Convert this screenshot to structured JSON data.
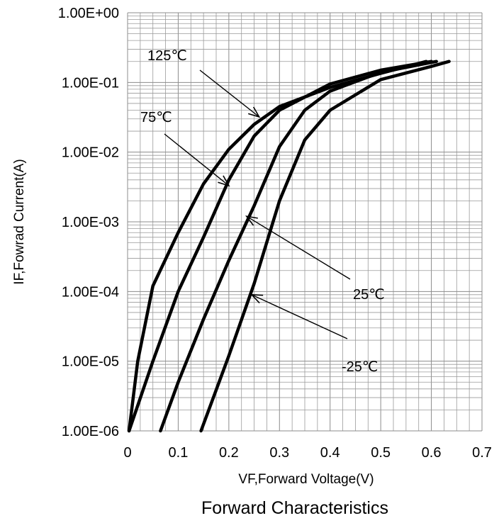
{
  "chart_data": {
    "type": "line",
    "title": "Forward Characteristics",
    "xlabel": "VF,Forward Voltage(V)",
    "ylabel": "IF,Fowrad Current(A)",
    "xlim": [
      0,
      0.7
    ],
    "ylim": [
      1e-06,
      1
    ],
    "y_scale": "log",
    "grid": true,
    "x_ticks": [
      "0",
      "0.1",
      "0.2",
      "0.3",
      "0.4",
      "0.5",
      "0.6",
      "0.7"
    ],
    "y_ticks": [
      "1.00E+00",
      "1.00E-01",
      "1.00E-02",
      "1.00E-03",
      "1.00E-04",
      "1.00E-05",
      "1.00E-06"
    ],
    "series": [
      {
        "name": "125℃",
        "points": [
          [
            0.003,
            1e-06
          ],
          [
            0.02,
            1e-05
          ],
          [
            0.05,
            0.00012
          ],
          [
            0.1,
            0.0007
          ],
          [
            0.15,
            0.0035
          ],
          [
            0.2,
            0.011
          ],
          [
            0.25,
            0.025
          ],
          [
            0.3,
            0.045
          ],
          [
            0.4,
            0.085
          ],
          [
            0.5,
            0.135
          ],
          [
            0.59,
            0.2
          ]
        ]
      },
      {
        "name": "75℃",
        "points": [
          [
            0.003,
            1e-06
          ],
          [
            0.05,
            1e-05
          ],
          [
            0.1,
            0.0001
          ],
          [
            0.15,
            0.0006
          ],
          [
            0.2,
            0.004
          ],
          [
            0.25,
            0.017
          ],
          [
            0.3,
            0.04
          ],
          [
            0.4,
            0.095
          ],
          [
            0.5,
            0.15
          ],
          [
            0.6,
            0.2
          ]
        ]
      },
      {
        "name": "25℃",
        "points": [
          [
            0.065,
            1e-06
          ],
          [
            0.1,
            5e-06
          ],
          [
            0.15,
            4e-05
          ],
          [
            0.2,
            0.00028
          ],
          [
            0.25,
            0.0017
          ],
          [
            0.3,
            0.012
          ],
          [
            0.35,
            0.04
          ],
          [
            0.4,
            0.075
          ],
          [
            0.5,
            0.14
          ],
          [
            0.61,
            0.2
          ]
        ]
      },
      {
        "name": "-25℃",
        "points": [
          [
            0.145,
            1e-06
          ],
          [
            0.2,
            1.2e-05
          ],
          [
            0.25,
            0.00013
          ],
          [
            0.3,
            0.002
          ],
          [
            0.35,
            0.015
          ],
          [
            0.4,
            0.04
          ],
          [
            0.5,
            0.11
          ],
          [
            0.6,
            0.17
          ],
          [
            0.635,
            0.2
          ]
        ]
      }
    ],
    "annotations": [
      {
        "text": "125℃",
        "target": [
          0.26,
          0.032
        ]
      },
      {
        "text": "75℃",
        "target": [
          0.2,
          0.0033
        ]
      },
      {
        "text": "25℃",
        "target": [
          0.235,
          0.0012
        ]
      },
      {
        "text": "-25℃",
        "target": [
          0.245,
          9e-05
        ]
      }
    ]
  }
}
